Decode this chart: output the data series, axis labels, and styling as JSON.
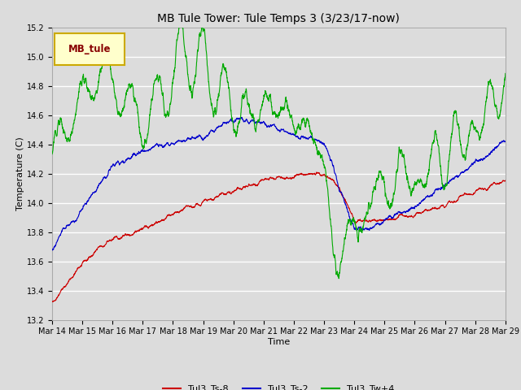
{
  "title": "MB Tule Tower: Tule Temps 3 (3/23/17-now)",
  "xlabel": "Time",
  "ylabel": "Temperature (C)",
  "ylim": [
    13.2,
    15.2
  ],
  "xlim": [
    0,
    15
  ],
  "bg_color": "#dcdcdc",
  "fig_color": "#dcdcdc",
  "grid_color": "#ffffff",
  "xtick_labels": [
    "Mar 14",
    "Mar 15",
    "Mar 16",
    "Mar 17",
    "Mar 18",
    "Mar 19",
    "Mar 20",
    "Mar 21",
    "Mar 22",
    "Mar 23",
    "Mar 24",
    "Mar 25",
    "Mar 26",
    "Mar 27",
    "Mar 28",
    "Mar 29"
  ],
  "ytick_labels": [
    "13.2",
    "13.4",
    "13.6",
    "13.8",
    "14.0",
    "14.2",
    "14.4",
    "14.6",
    "14.8",
    "15.0",
    "15.2"
  ],
  "series_colors": [
    "#cc0000",
    "#0000cc",
    "#00aa00"
  ],
  "series_labels": [
    "Tul3_Ts-8",
    "Tul3_Ts-2",
    "Tul3_Tw+4"
  ],
  "legend_label": "MB_tule",
  "legend_bg": "#ffffcc",
  "legend_border": "#ccaa00",
  "title_fontsize": 10,
  "axis_fontsize": 8,
  "tick_fontsize": 7
}
